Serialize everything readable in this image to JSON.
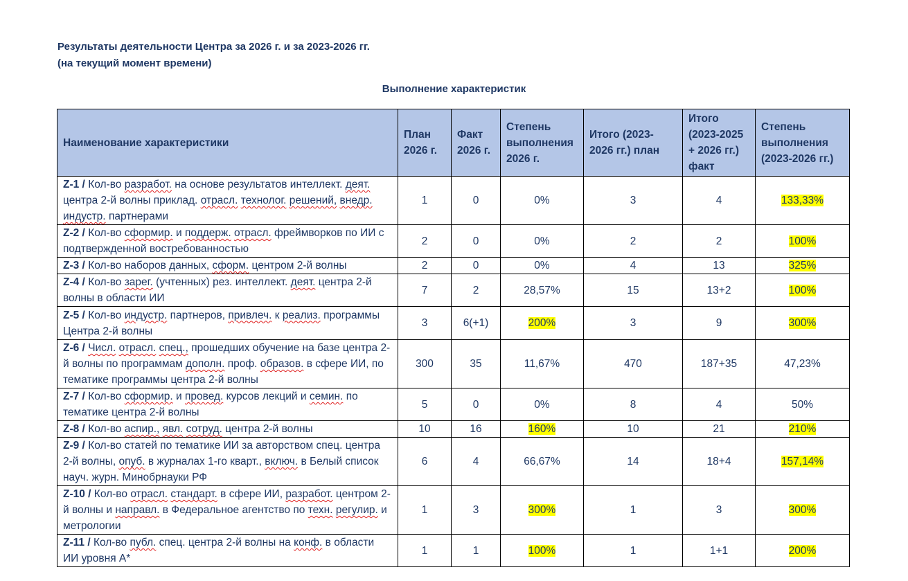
{
  "header": {
    "title_line1": "Результаты деятельности Центра за 2026 г. и за 2023-2026 гг.",
    "title_line2": "(на текущий момент времени)",
    "subtitle": "Выполнение характеристик"
  },
  "table": {
    "columns": [
      {
        "label": "Наименование характеристики"
      },
      {
        "label": "План 2026 г."
      },
      {
        "label": "Факт 2026 г."
      },
      {
        "label": "Степень выполнения 2026 г."
      },
      {
        "label": "Итого (2023-2026 гг.) план"
      },
      {
        "label": "Итого (2023-2025 + 2026 гг.) факт"
      },
      {
        "label": "Степень выполнения (2023-2026 гг.)"
      }
    ],
    "rows": [
      {
        "code": "Z-1 /",
        "text": "Кол-во разработ. на основе результатов интеллект. деят. центра 2-й волны приклад. отрасл. технолог. решений, внедр. индустр. партнерами",
        "plan": "1",
        "fact": "0",
        "pct": "0%",
        "total_plan": "3",
        "total_fact": "4",
        "total_pct": "133,33%",
        "hl_pct": false,
        "hl_total": true
      },
      {
        "code": "Z-2 /",
        "text": "Кол-во сформир. и поддерж. отрасл. фреймворков по ИИ с подтвержденной востребованностью",
        "plan": "2",
        "fact": "0",
        "pct": "0%",
        "total_plan": "2",
        "total_fact": "2",
        "total_pct": "100%",
        "hl_pct": false,
        "hl_total": true
      },
      {
        "code": "Z-3 /",
        "text": "Кол-во наборов данных, сформ. центром 2-й волны",
        "plan": "2",
        "fact": "0",
        "pct": "0%",
        "total_plan": "4",
        "total_fact": "13",
        "total_pct": "325%",
        "hl_pct": false,
        "hl_total": true
      },
      {
        "code": "Z-4 /",
        "text": "Кол-во зарег. (учтенных) рез. интеллект. деят. центра 2-й волны в области ИИ",
        "plan": "7",
        "fact": "2",
        "pct": "28,57%",
        "total_plan": "15",
        "total_fact": "13+2",
        "total_pct": "100%",
        "hl_pct": false,
        "hl_total": true
      },
      {
        "code": "Z-5 /",
        "text": "Кол-во индустр. партнеров, привлеч. к реализ. программы Центра 2-й волны",
        "plan": "3",
        "fact": "6(+1)",
        "pct": "200%",
        "total_plan": "3",
        "total_fact": "9",
        "total_pct": "300%",
        "hl_pct": true,
        "hl_total": true
      },
      {
        "code": "Z-6 /",
        "text": "Числ. отрасл. спец., прошедших обучение на базе центра 2-й волны по программам дополн. проф. образов. в сфере ИИ, по тематике программы центра 2-й волны",
        "plan": "300",
        "fact": "35",
        "pct": "11,67%",
        "total_plan": "470",
        "total_fact": "187+35",
        "total_pct": "47,23%",
        "hl_pct": false,
        "hl_total": false
      },
      {
        "code": "Z-7 /",
        "text": "Кол-во сформир. и провед. курсов лекций и семин. по тематике центра 2-й волны",
        "plan": "5",
        "fact": "0",
        "pct": "0%",
        "total_plan": "8",
        "total_fact": "4",
        "total_pct": "50%",
        "hl_pct": false,
        "hl_total": false
      },
      {
        "code": "Z-8 /",
        "text": "Кол-во аспир., явл. сотруд. центра 2-й волны",
        "plan": "10",
        "fact": "16",
        "pct": "160%",
        "total_plan": "10",
        "total_fact": "21",
        "total_pct": "210%",
        "hl_pct": true,
        "hl_total": true
      },
      {
        "code": "Z-9 /",
        "text": "Кол-во статей по тематике ИИ за авторством спец. центра 2-й волны, опуб. в журналах 1-го кварт., включ. в Белый список науч. журн. Минобрнауки РФ",
        "plan": "6",
        "fact": "4",
        "pct": "66,67%",
        "total_plan": "14",
        "total_fact": "18+4",
        "total_pct": "157,14%",
        "hl_pct": false,
        "hl_total": true
      },
      {
        "code": "Z-10 /",
        "text": "Кол-во отрасл. стандарт. в сфере ИИ, разработ. центром 2-й волны и направл. в Федеральное агентство по техн. регулир. и метрологии",
        "plan": "1",
        "fact": "3",
        "pct": "300%",
        "total_plan": "1",
        "total_fact": "3",
        "total_pct": "300%",
        "hl_pct": true,
        "hl_total": true
      },
      {
        "code": "Z-11 /",
        "text": "Кол-во публ. спец. центра 2-й волны на конф. в области ИИ уровня А*",
        "plan": "1",
        "fact": "1",
        "pct": "100%",
        "total_plan": "1",
        "total_fact": "1+1",
        "total_pct": "200%",
        "hl_pct": true,
        "hl_total": true
      }
    ]
  }
}
